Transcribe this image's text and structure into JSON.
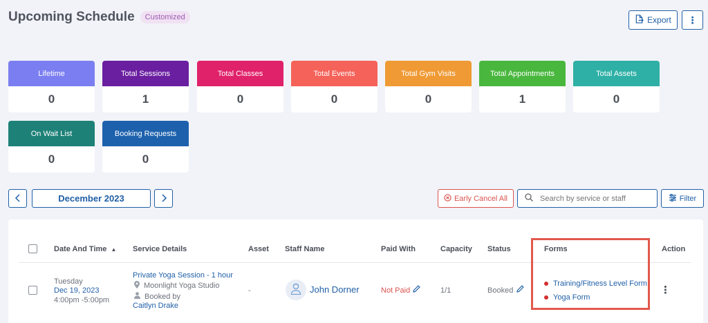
{
  "header": {
    "title": "Upcoming Schedule",
    "badge": "Customized",
    "export_label": "Export",
    "more_icon": "kebab-icon"
  },
  "stats": [
    {
      "label": "Lifetime",
      "value": "0",
      "color": "#7b7ef0"
    },
    {
      "label": "Total Sessions",
      "value": "1",
      "color": "#6a1fa0"
    },
    {
      "label": "Total Classes",
      "value": "0",
      "color": "#e0226a"
    },
    {
      "label": "Total Events",
      "value": "0",
      "color": "#f5625a"
    },
    {
      "label": "Total Gym Visits",
      "value": "0",
      "color": "#ef9a35"
    },
    {
      "label": "Total Appointments",
      "value": "1",
      "color": "#49b73e"
    },
    {
      "label": "Total Assets",
      "value": "0",
      "color": "#2fb0a6"
    },
    {
      "label": "On Wait List",
      "value": "0",
      "color": "#1e8178"
    },
    {
      "label": "Booking Requests",
      "value": "0",
      "color": "#1d61ad"
    }
  ],
  "toolbar": {
    "month": "December 2023",
    "early_cancel_label": "Early Cancel All",
    "search_placeholder": "Search by service or staff",
    "filter_label": "Filter"
  },
  "table": {
    "columns": [
      "Date And Time",
      "Service Details",
      "Asset",
      "Staff Name",
      "Paid With",
      "Capacity",
      "Status",
      "Forms",
      "Action"
    ],
    "sort_indicator": "▲",
    "rows": [
      {
        "day": "Tuesday",
        "date": "Dec 19, 2023",
        "time": "4:00pm -5:00pm",
        "service": "Private Yoga Session - 1 hour",
        "location": "Moonlight Yoga Studio",
        "booked_by_label": "Booked by",
        "booked_by": "Caitlyn Drake",
        "asset": "-",
        "staff": "John Dorner",
        "paid_with": "Not Paid",
        "capacity": "1/1",
        "status": "Booked",
        "forms": [
          "Training/Fitness Level Form",
          "Yoga Form"
        ]
      }
    ]
  },
  "colors": {
    "accent": "#1f5fa6",
    "danger": "#d9534f",
    "highlight": "#e2584c"
  }
}
